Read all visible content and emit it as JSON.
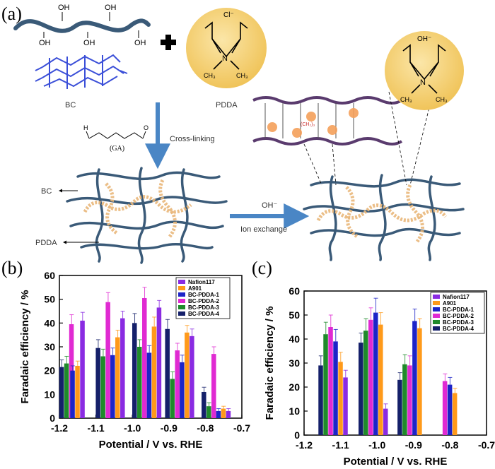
{
  "panel_a": {
    "label": "(a)",
    "oh": "OH",
    "cl": "Cl⁻",
    "ohminus": "OH⁻",
    "n": "N",
    "ch3": "CH₃",
    "bc_label": "BC",
    "pdda_label": "PDDA",
    "ga_label": "(GA)",
    "crosslinking": "Cross-linking",
    "exchange_top": "OH⁻",
    "exchange_bottom": "Ion exchange",
    "network_bc": "BC",
    "network_pdda": "PDDA",
    "chain_label": "(CH₂)₃",
    "colors": {
      "chain": "#3a5a78",
      "bead": "#e9b77a",
      "sphere": "#f2cf6b",
      "arrow": "#4a86c5"
    }
  },
  "chart_data": [
    {
      "panel": "(b)",
      "type": "bar",
      "xlabel": "Potential / V vs. RHE",
      "ylabel": "Faradaic efficiency / %",
      "ylim": [
        0,
        60
      ],
      "yticks": [
        0,
        10,
        20,
        30,
        40,
        50,
        60
      ],
      "xlim": [
        -1.2,
        -0.7
      ],
      "xticks": [
        "-1.2",
        "-1.1",
        "-1.0",
        "-0.9",
        "-0.8",
        "-0.7"
      ],
      "groups": [
        {
          "potential": -1.18,
          "bars": [
            [
              "BC-PDDA-4",
              21.5,
              3
            ],
            [
              "BC-PDDA-3",
              23,
              3
            ],
            [
              "BC-PDDA-2",
              39.5,
              4
            ]
          ]
        },
        {
          "potential": -1.15,
          "bars": [
            [
              "BC-PDDA-1",
              20,
              2
            ],
            [
              "A901",
              22,
              2
            ],
            [
              "Nafion117",
              41,
              3.5
            ]
          ]
        },
        {
          "potential": -1.08,
          "bars": [
            [
              "BC-PDDA-4",
              29.5,
              3.5
            ],
            [
              "BC-PDDA-3",
              26,
              3
            ],
            [
              "BC-PDDA-2",
              48.8,
              4
            ]
          ]
        },
        {
          "potential": -1.04,
          "bars": [
            [
              "BC-PDDA-1",
              26.5,
              3
            ],
            [
              "A901",
              34,
              3
            ],
            [
              "Nafion117",
              42,
              3
            ]
          ]
        },
        {
          "potential": -0.98,
          "bars": [
            [
              "BC-PDDA-4",
              40,
              4
            ],
            [
              "BC-PDDA-3",
              30,
              3
            ],
            [
              "BC-PDDA-2",
              50.5,
              4.5
            ]
          ]
        },
        {
          "potential": -0.94,
          "bars": [
            [
              "BC-PDDA-1",
              27.5,
              3
            ],
            [
              "A901",
              38.5,
              4
            ],
            [
              "Nafion117",
              46.5,
              3
            ]
          ]
        },
        {
          "potential": -0.89,
          "bars": [
            [
              "BC-PDDA-4",
              37.5,
              4
            ],
            [
              "BC-PDDA-3",
              16.5,
              3
            ],
            [
              "BC-PDDA-2",
              28.5,
              3
            ]
          ]
        },
        {
          "potential": -0.85,
          "bars": [
            [
              "BC-PDDA-1",
              23.5,
              3
            ],
            [
              "A901",
              36,
              3
            ],
            [
              "Nafion117",
              34.5,
              3
            ]
          ]
        },
        {
          "potential": -0.79,
          "bars": [
            [
              "BC-PDDA-4",
              11,
              2
            ],
            [
              "BC-PDDA-3",
              5,
              1.5
            ],
            [
              "BC-PDDA-2",
              27,
              3
            ]
          ]
        },
        {
          "potential": -0.75,
          "bars": [
            [
              "BC-PDDA-1",
              3,
              1
            ],
            [
              "A901",
              4,
              1
            ],
            [
              "Nafion117",
              3,
              1
            ]
          ]
        }
      ]
    },
    {
      "panel": "(c)",
      "type": "bar",
      "xlabel": "Potential / V vs. RHE",
      "ylabel": "Faradaic efficiency / %",
      "ylim": [
        0,
        60
      ],
      "yticks": [
        0,
        10,
        20,
        30,
        40,
        50,
        60
      ],
      "xlim": [
        -1.2,
        -0.7
      ],
      "xticks": [
        "-1.2",
        "-1.1",
        "-1.0",
        "-0.9",
        "-0.8",
        "-0.7"
      ],
      "groups": [
        {
          "potential": -1.12,
          "bars": [
            [
              "BC-PDDA-4",
              29,
              4
            ],
            [
              "BC-PDDA-3",
              42,
              5
            ],
            [
              "BC-PDDA-2",
              45,
              5
            ],
            [
              "BC-PDDA-1",
              39,
              5
            ],
            [
              "A901",
              30.5,
              4
            ],
            [
              "Nafion117",
              24,
              3
            ]
          ]
        },
        {
          "potential": -1.01,
          "bars": [
            [
              "BC-PDDA-4",
              38.5,
              4
            ],
            [
              "BC-PDDA-3",
              43.5,
              5
            ],
            [
              "BC-PDDA-2",
              48,
              5
            ],
            [
              "BC-PDDA-1",
              51,
              6
            ],
            [
              "A901",
              46,
              5
            ],
            [
              "Nafion117",
              11,
              2
            ]
          ]
        },
        {
          "potential": -0.91,
          "bars": [
            [
              "BC-PDDA-4",
              23,
              3
            ],
            [
              "BC-PDDA-3",
              29.5,
              4
            ],
            [
              "BC-PDDA-2",
              29,
              4
            ],
            [
              "BC-PDDA-1",
              47.5,
              5
            ],
            [
              "A901",
              44.5,
              4
            ]
          ]
        },
        {
          "potential": -0.8,
          "bars": [
            [
              "BC-PDDA-2",
              22.5,
              3
            ],
            [
              "BC-PDDA-1",
              21,
              3
            ],
            [
              "A901",
              17.5,
              2
            ]
          ]
        }
      ]
    }
  ],
  "legend": [
    "Nafion117",
    "A901",
    "BC-PDDA-1",
    "BC-PDDA-2",
    "BC-PDDA-3",
    "BC-PDDA-4"
  ],
  "series_colors": {
    "Nafion117": "#8a2be2",
    "A901": "#ff9a1a",
    "BC-PDDA-1": "#1d24c8",
    "BC-PDDA-2": "#e02ad2",
    "BC-PDDA-3": "#1f8a2a",
    "BC-PDDA-4": "#15206a"
  },
  "panel_b_label": "(b)",
  "panel_c_label": "(c)"
}
